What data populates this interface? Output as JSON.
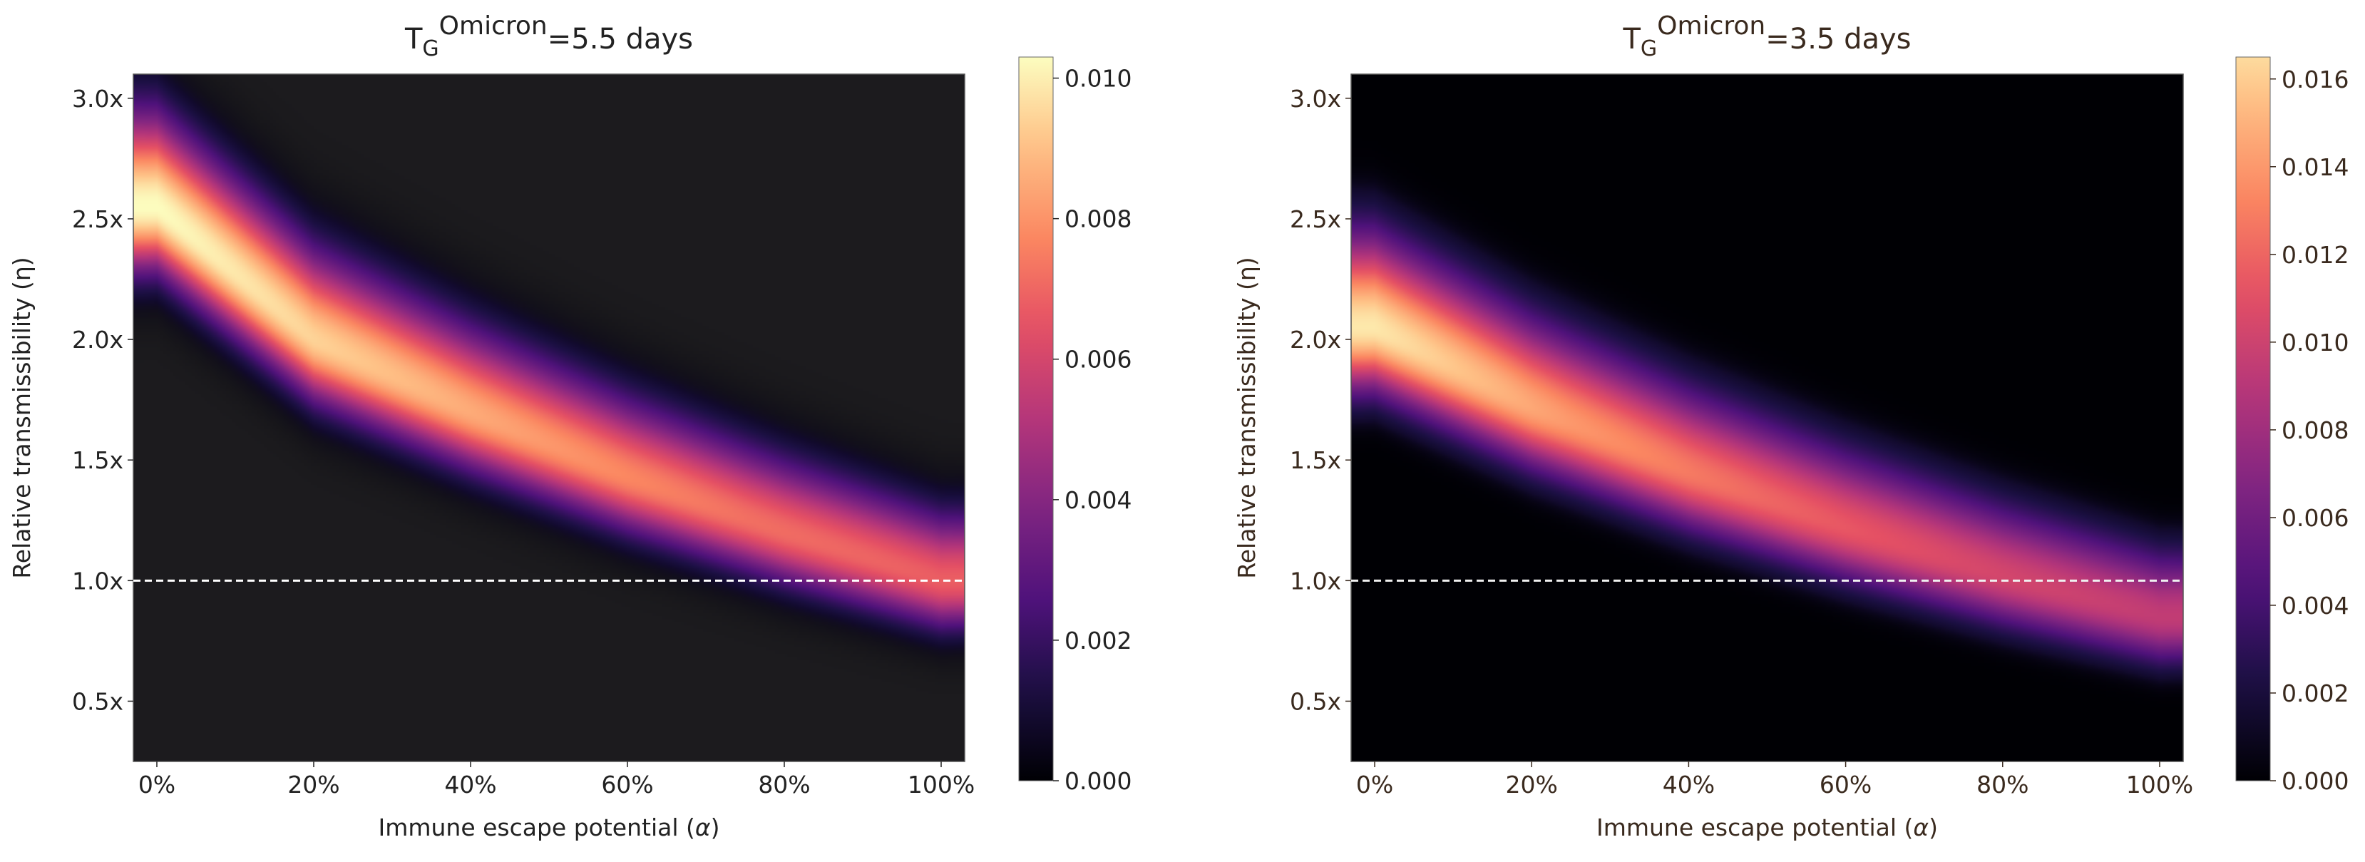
{
  "chart_data": [
    {
      "type": "heatmap",
      "title": {
        "base": "T",
        "sub": "G",
        "sup": "Omicron",
        "rest": "=5.5 days"
      },
      "xlabel_text": "Immune escape potential (",
      "xlabel_symbol": "α",
      "xlabel_close": ")",
      "ylabel": "Relative transmissibility (η)",
      "x_ticks": [
        "0%",
        "20%",
        "40%",
        "60%",
        "80%",
        "100%"
      ],
      "y_ticks": [
        "0.5x",
        "1.0x",
        "1.5x",
        "2.0x",
        "2.5x",
        "3.0x"
      ],
      "xlim": [
        -0.03,
        1.03
      ],
      "ylim": [
        0.25,
        3.1
      ],
      "colorbar_ticks": [
        "0.000",
        "0.002",
        "0.004",
        "0.006",
        "0.008",
        "0.010"
      ],
      "colorbar_range": [
        0,
        0.0103
      ],
      "reference_line_y": 1.0,
      "peak_ridge": [
        {
          "x": 0.0,
          "y": 2.55
        },
        {
          "x": 0.2,
          "y": 2.0
        },
        {
          "x": 0.4,
          "y": 1.7
        },
        {
          "x": 0.6,
          "y": 1.43
        },
        {
          "x": 0.8,
          "y": 1.2
        },
        {
          "x": 1.0,
          "y": 1.0
        }
      ],
      "peak_density": [
        {
          "x": 0.0,
          "v": 0.0103
        },
        {
          "x": 0.25,
          "v": 0.0092
        },
        {
          "x": 0.5,
          "v": 0.0081
        },
        {
          "x": 0.75,
          "v": 0.0072
        },
        {
          "x": 1.0,
          "v": 0.0068
        }
      ],
      "background_color": "#1c1b1e",
      "line_color": "#ffffff",
      "text_color": "#222222"
    },
    {
      "type": "heatmap",
      "title": {
        "base": "T",
        "sub": "G",
        "sup": "Omicron",
        "rest": "=3.5 days"
      },
      "xlabel_text": "Immune escape potential (",
      "xlabel_symbol": "α",
      "xlabel_close": ")",
      "ylabel": "Relative transmissibility (η)",
      "x_ticks": [
        "0%",
        "20%",
        "40%",
        "60%",
        "80%",
        "100%"
      ],
      "y_ticks": [
        "0.5x",
        "1.0x",
        "1.5x",
        "2.0x",
        "2.5x",
        "3.0x"
      ],
      "xlim": [
        -0.03,
        1.03
      ],
      "ylim": [
        0.25,
        3.1
      ],
      "colorbar_ticks": [
        "0.000",
        "0.002",
        "0.004",
        "0.006",
        "0.008",
        "0.010",
        "0.012",
        "0.014",
        "0.016"
      ],
      "colorbar_range": [
        0,
        0.0165
      ],
      "reference_line_y": 1.0,
      "peak_ridge": [
        {
          "x": 0.0,
          "y": 2.05
        },
        {
          "x": 0.2,
          "y": 1.72
        },
        {
          "x": 0.4,
          "y": 1.45
        },
        {
          "x": 0.6,
          "y": 1.22
        },
        {
          "x": 0.8,
          "y": 1.02
        },
        {
          "x": 1.0,
          "y": 0.85
        }
      ],
      "peak_density": [
        {
          "x": 0.0,
          "v": 0.0158
        },
        {
          "x": 0.25,
          "v": 0.013
        },
        {
          "x": 0.5,
          "v": 0.0112
        },
        {
          "x": 0.75,
          "v": 0.0098
        },
        {
          "x": 1.0,
          "v": 0.0088
        }
      ],
      "background_color": "#000004",
      "line_color": "#f0f0f0",
      "text_color": "#3a2a1e"
    }
  ]
}
